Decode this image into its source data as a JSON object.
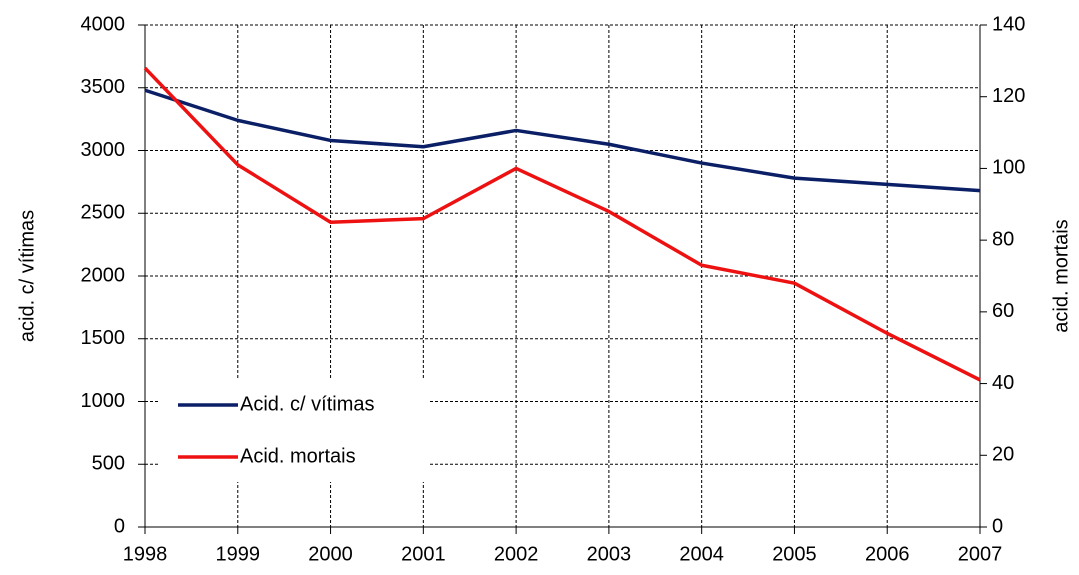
{
  "chart_data": {
    "type": "line",
    "x": [
      1998,
      1999,
      2000,
      2001,
      2002,
      2003,
      2004,
      2005,
      2006,
      2007
    ],
    "series": [
      {
        "name": "Acid. c/ vítimas",
        "color": "#0a1f66",
        "values": [
          3480,
          3240,
          3080,
          3030,
          3160,
          3050,
          2900,
          2780,
          2730,
          2680
        ]
      },
      {
        "name": "Acid. mortais",
        "color": "#ee1111",
        "axis": "y2",
        "values": [
          128,
          101,
          85,
          86,
          100,
          88,
          73,
          68,
          54,
          41
        ]
      }
    ],
    "ylabel": "acid. c/ vítimas",
    "y2label": "acid. mortais",
    "xlim": [
      1998,
      2007
    ],
    "xticks": [
      1998,
      1999,
      2000,
      2001,
      2002,
      2003,
      2004,
      2005,
      2006,
      2007
    ],
    "ylim": [
      0,
      4000
    ],
    "yticks": [
      0,
      500,
      1000,
      1500,
      2000,
      2500,
      3000,
      3500,
      4000
    ],
    "y2lim": [
      0,
      140
    ],
    "y2ticks": [
      0,
      20,
      40,
      60,
      80,
      100,
      120,
      140
    ],
    "grid": true,
    "legend": "lower left"
  }
}
